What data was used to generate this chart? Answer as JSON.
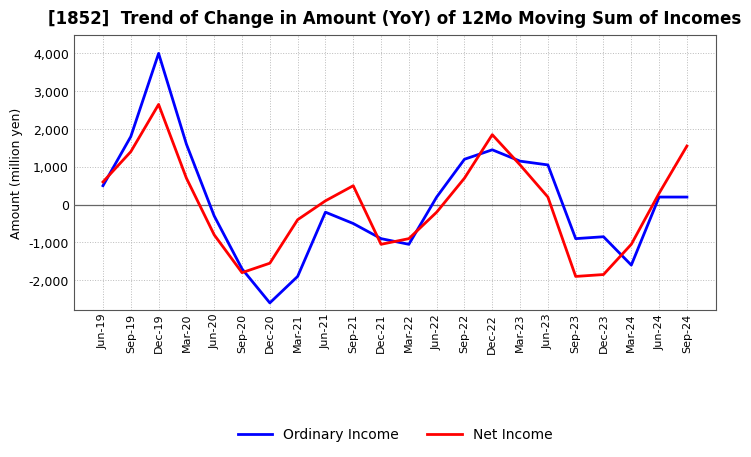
{
  "title": "[1852]  Trend of Change in Amount (YoY) of 12Mo Moving Sum of Incomes",
  "ylabel": "Amount (million yen)",
  "x_labels": [
    "Jun-19",
    "Sep-19",
    "Dec-19",
    "Mar-20",
    "Jun-20",
    "Sep-20",
    "Dec-20",
    "Mar-21",
    "Jun-21",
    "Sep-21",
    "Dec-21",
    "Mar-22",
    "Jun-22",
    "Sep-22",
    "Dec-22",
    "Mar-23",
    "Jun-23",
    "Sep-23",
    "Dec-23",
    "Mar-24",
    "Jun-24",
    "Sep-24"
  ],
  "ordinary_income": [
    500,
    1800,
    4000,
    1600,
    -300,
    -1700,
    -2600,
    -1900,
    -200,
    -500,
    -900,
    -1050,
    200,
    1200,
    1450,
    1150,
    1050,
    -900,
    -850,
    -1600,
    200,
    200
  ],
  "net_income": [
    600,
    1400,
    2650,
    700,
    -800,
    -1800,
    -1550,
    -400,
    100,
    500,
    -1050,
    -900,
    -200,
    700,
    1850,
    1050,
    200,
    -1900,
    -1850,
    -1050,
    300,
    1550
  ],
  "ylim": [
    -2800,
    4500
  ],
  "yticks": [
    -2000,
    -1000,
    0,
    1000,
    2000,
    3000,
    4000
  ],
  "ordinary_color": "#0000FF",
  "net_color": "#FF0000",
  "background_color": "#FFFFFF",
  "grid_color": "#BBBBBB",
  "title_fontsize": 12,
  "axis_fontsize": 9,
  "legend_fontsize": 10,
  "tick_fontsize": 9,
  "xtick_fontsize": 8
}
